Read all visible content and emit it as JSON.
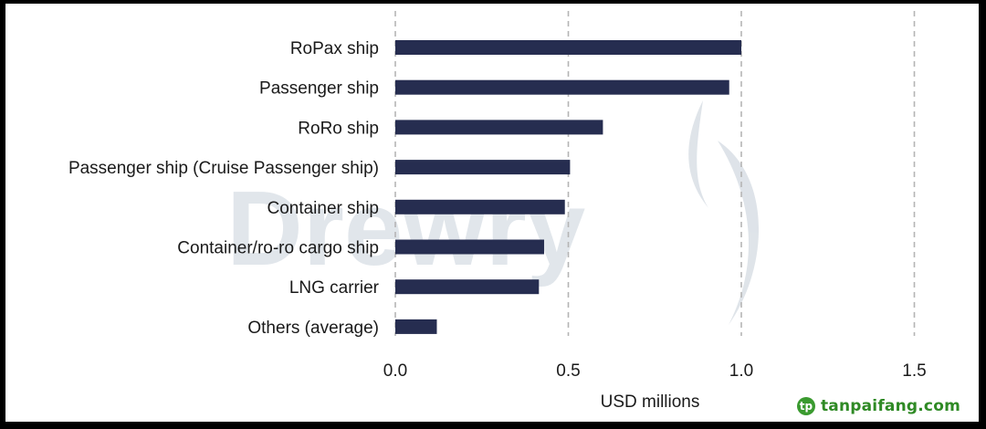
{
  "chart_data": {
    "type": "bar",
    "orientation": "horizontal",
    "categories": [
      "RoPax ship",
      "Passenger ship",
      "RoRo ship",
      "Passenger ship (Cruise Passenger ship)",
      "Container ship",
      "Container/ro-ro cargo ship",
      "LNG carrier",
      "Others (average)"
    ],
    "values": [
      1.0,
      0.965,
      0.6,
      0.505,
      0.49,
      0.43,
      0.415,
      0.12
    ],
    "xlabel": "USD millions",
    "ylabel": "",
    "xlim": [
      0,
      1.5
    ],
    "xticks": [
      0.0,
      0.5,
      1.0,
      1.5
    ],
    "xtick_labels": [
      "0.0",
      "0.5",
      "1.0",
      "1.5"
    ],
    "grid": "vertical dashed",
    "bar_color": "#262d50"
  },
  "watermark": "Drewry",
  "site_logo": {
    "text": "tanpaifang.com",
    "mark": "tp",
    "color": "#2f8a25"
  }
}
